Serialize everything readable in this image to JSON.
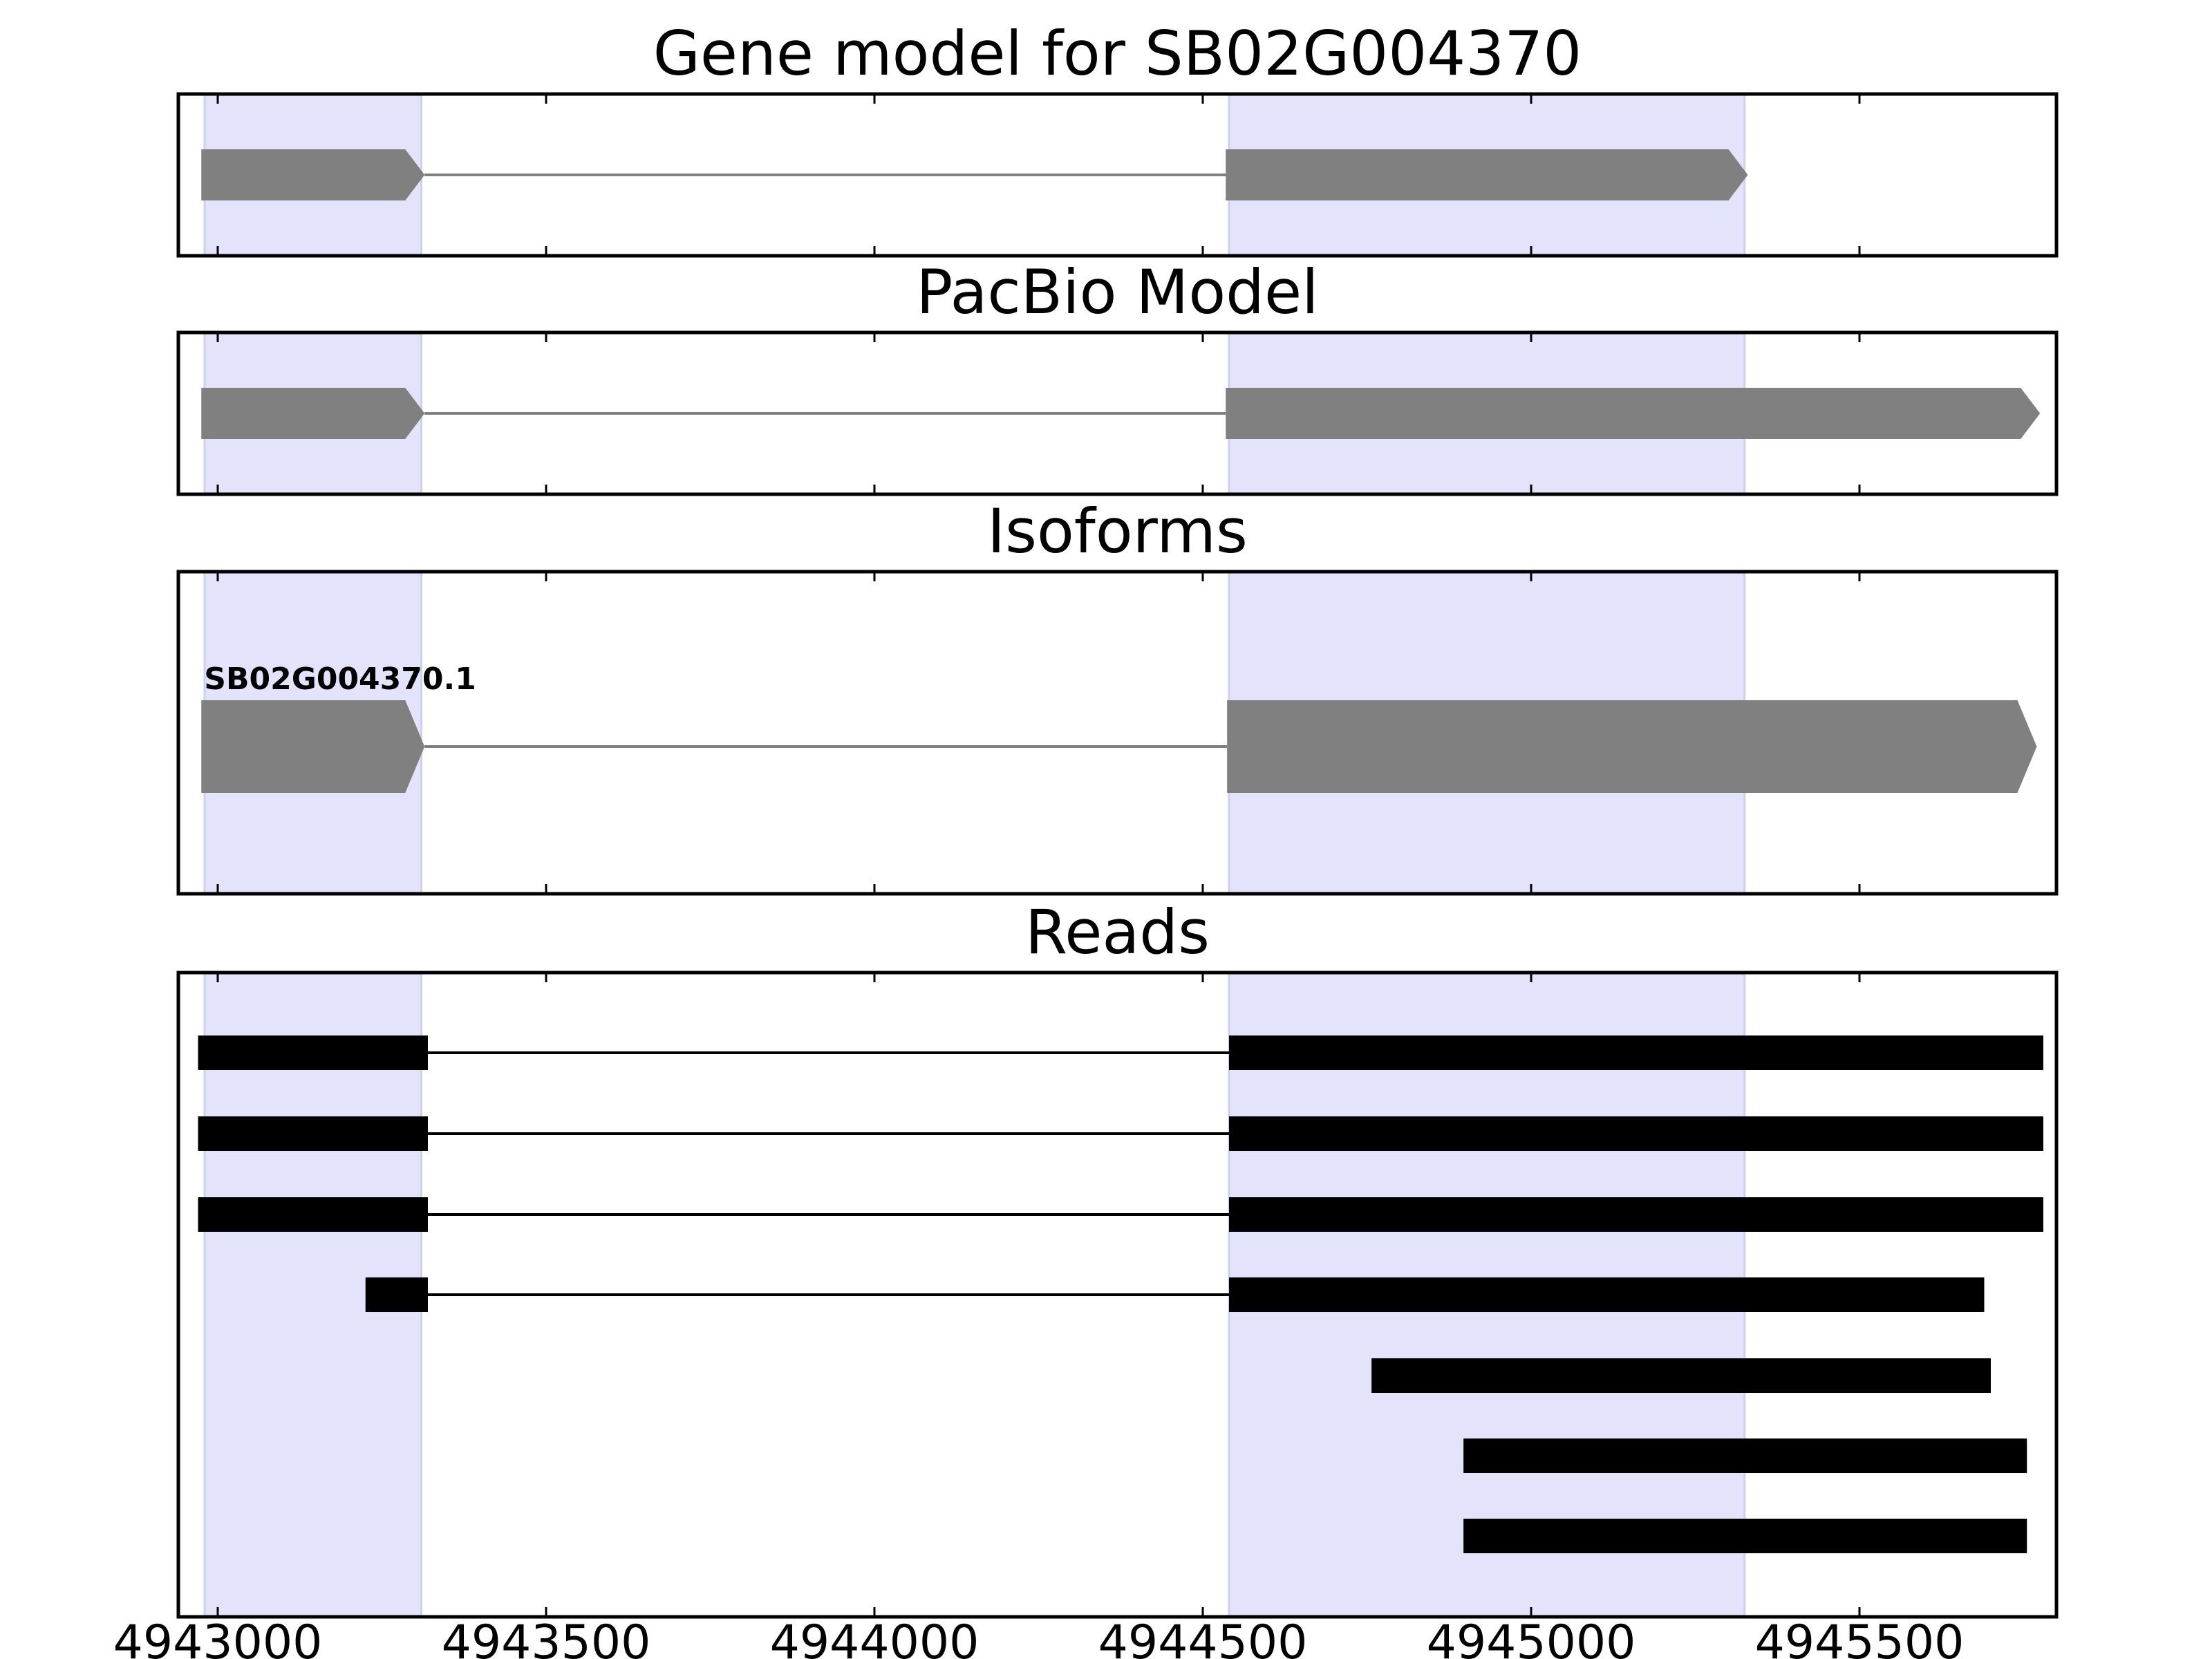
{
  "chart_data": {
    "type": "gene-model",
    "x_axis": {
      "range": [
        4942940,
        4945800
      ],
      "ticks": [
        4943000,
        4943500,
        4944000,
        4944500,
        4945000,
        4945500
      ],
      "tick_labels": [
        "4943000",
        "4943500",
        "4944000",
        "4944500",
        "4945000",
        "4945500"
      ]
    },
    "highlight_color": "#e3e3fc",
    "exon_regions": [
      [
        4942980,
        4943310
      ],
      [
        4944540,
        4945325
      ]
    ],
    "panels": [
      {
        "title": "Gene model for SB02G004370",
        "strand": "+",
        "color": "#808080",
        "intron_color": "#808080",
        "tracks": [
          {
            "label": "",
            "exons": [
              [
                4942975,
                4943315
              ],
              [
                4944535,
                4945330
              ]
            ]
          }
        ]
      },
      {
        "title": "PacBio Model",
        "strand": "+",
        "color": "#808080",
        "intron_color": "#808080",
        "tracks": [
          {
            "label": "",
            "exons": [
              [
                4942975,
                4943315
              ],
              [
                4944535,
                4945775
              ]
            ]
          }
        ]
      },
      {
        "title": "Isoforms",
        "strand": "+",
        "color": "#808080",
        "intron_color": "#808080",
        "tracks": [
          {
            "label": "SB02G004370.1",
            "exons": [
              [
                4942975,
                4943315
              ],
              [
                4944537,
                4945770
              ]
            ]
          }
        ]
      },
      {
        "title": "Reads",
        "color": "#000000",
        "intron_color": "#000000",
        "tracks": [
          {
            "label": "",
            "exons": [
              [
                4942970,
                4943320
              ],
              [
                4944540,
                4945780
              ]
            ]
          },
          {
            "label": "",
            "exons": [
              [
                4942970,
                4943320
              ],
              [
                4944540,
                4945780
              ]
            ]
          },
          {
            "label": "",
            "exons": [
              [
                4942970,
                4943320
              ],
              [
                4944540,
                4945780
              ]
            ]
          },
          {
            "label": "",
            "exons": [
              [
                4943225,
                4943320
              ],
              [
                4944540,
                4945690
              ]
            ]
          },
          {
            "label": "",
            "exons": [
              [
                4944757,
                4945700
              ]
            ]
          },
          {
            "label": "",
            "exons": [
              [
                4944897,
                4945755
              ]
            ]
          },
          {
            "label": "",
            "exons": [
              [
                4944897,
                4945755
              ]
            ]
          }
        ]
      }
    ]
  }
}
